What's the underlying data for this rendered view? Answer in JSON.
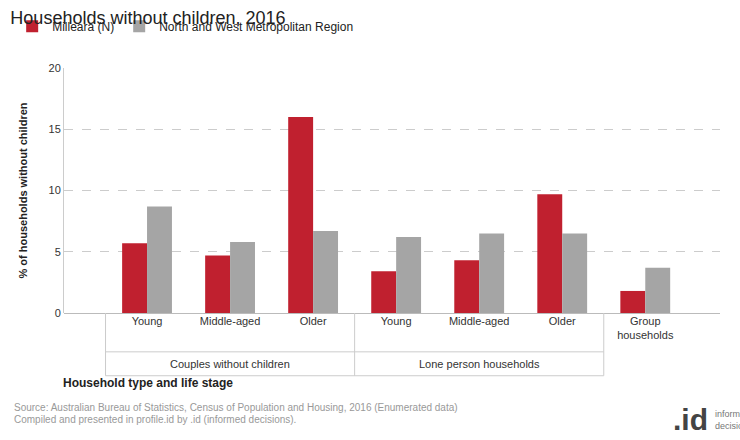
{
  "chart_data": {
    "type": "bar",
    "title": "Households without children, 2016",
    "x_label": "Household type and life stage",
    "y_label": "% of households without children",
    "categories": [
      "Young",
      "Middle-aged",
      "Older",
      "Young",
      "Middle-aged",
      "Older",
      "Group households"
    ],
    "category_groups": [
      "Couples without children",
      "Couples without children",
      "Couples without children",
      "Lone person households",
      "Lone person households",
      "Lone person households",
      null
    ],
    "series": [
      {
        "name": "Milleara (N)",
        "color": "#c0202f",
        "values": [
          5.7,
          4.7,
          16.0,
          3.4,
          4.3,
          9.7,
          1.8
        ]
      },
      {
        "name": "North and West Metropolitan Region",
        "color": "#a5a5a5",
        "values": [
          8.7,
          5.8,
          6.7,
          6.2,
          6.5,
          6.5,
          3.7
        ]
      }
    ],
    "ylim": [
      0,
      20
    ],
    "yticks": [
      0,
      5,
      10,
      15,
      20
    ],
    "grid": true,
    "legend": "top-left",
    "source": [
      "Source: Australian Bureau of Statistics, Census of Population and Housing, 2016 (Enumerated data)",
      "Compiled and presented in profile.id by .id (informed decisions)."
    ],
    "logo": [
      ".id",
      "informed decisions"
    ]
  }
}
